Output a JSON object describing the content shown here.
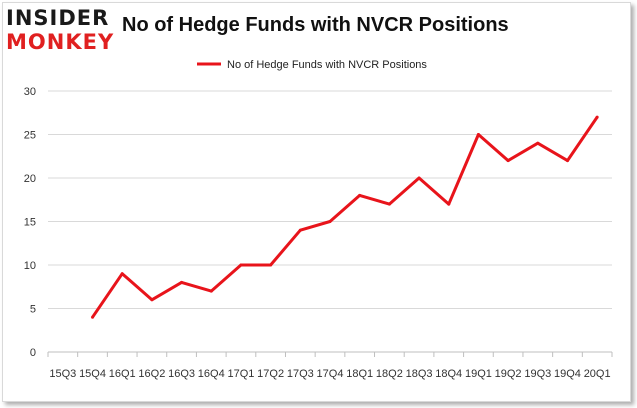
{
  "logo": {
    "line1": "INSIDER",
    "line2": "MONKEY"
  },
  "chart_data": {
    "type": "line",
    "title": "No of Hedge Funds with NVCR Positions",
    "xlabel": "",
    "ylabel": "",
    "categories": [
      "15Q3",
      "15Q4",
      "16Q1",
      "16Q2",
      "16Q3",
      "16Q4",
      "17Q1",
      "17Q2",
      "17Q3",
      "17Q4",
      "18Q1",
      "18Q2",
      "18Q3",
      "18Q4",
      "19Q1",
      "19Q2",
      "19Q3",
      "19Q4",
      "20Q1"
    ],
    "series": [
      {
        "name": "No of Hedge Funds with NVCR  Positions",
        "color": "#e8141b",
        "values": [
          null,
          4,
          9,
          6,
          8,
          7,
          10,
          10,
          14,
          15,
          18,
          17,
          20,
          17,
          25,
          22,
          24,
          22,
          27
        ]
      }
    ],
    "ylim": [
      0,
      30
    ],
    "yticks": [
      0,
      5,
      10,
      15,
      20,
      25,
      30
    ],
    "grid": true,
    "legend": "top-center"
  }
}
